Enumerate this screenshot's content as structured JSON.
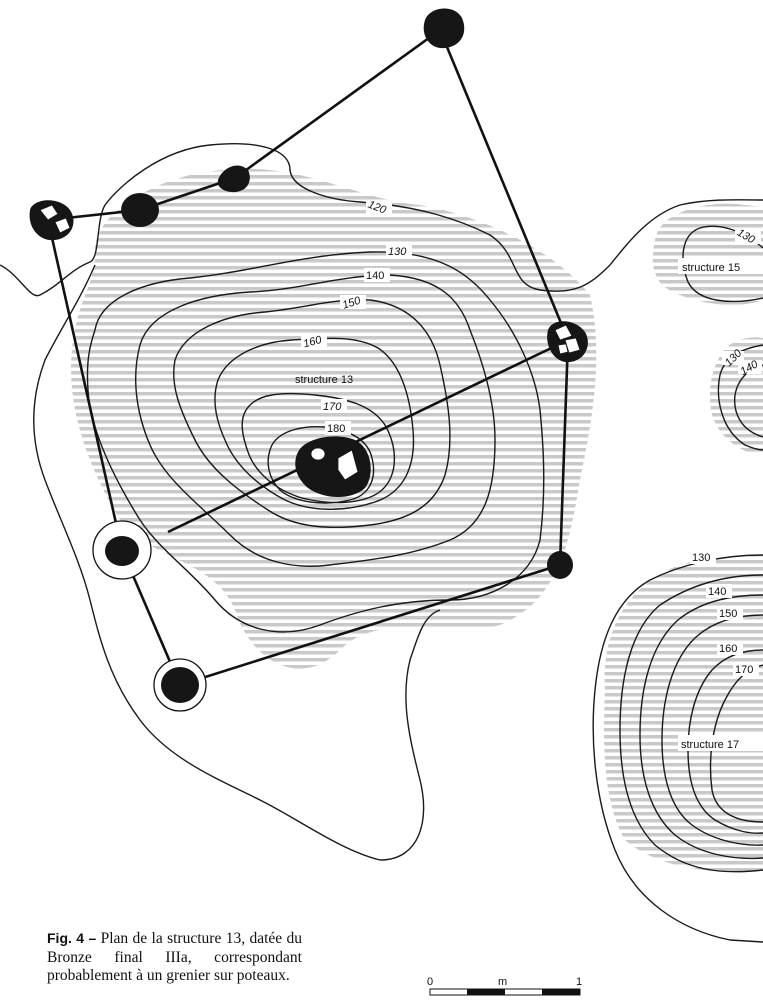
{
  "figure": {
    "caption_label": "Fig. 4 –",
    "caption_text": " Plan de la structure 13, datée du Bronze final IIIa, correspondant probablement à un grenier sur poteaux."
  },
  "structures": {
    "s13": "structure 13",
    "s15": "structure 15",
    "s17": "structure 17"
  },
  "contours": {
    "s13": [
      "120",
      "130",
      "140",
      "150",
      "160",
      "170",
      "180"
    ],
    "s15": [
      "130"
    ],
    "s16": [
      "130",
      "140"
    ],
    "s17": [
      "130",
      "140",
      "150",
      "160",
      "170"
    ]
  },
  "scale_bar": {
    "start": "0",
    "unit": "m",
    "end": "1"
  },
  "colors": {
    "ink": "#161616",
    "hatch": "#c9c9c9",
    "paper": "#ffffff"
  }
}
